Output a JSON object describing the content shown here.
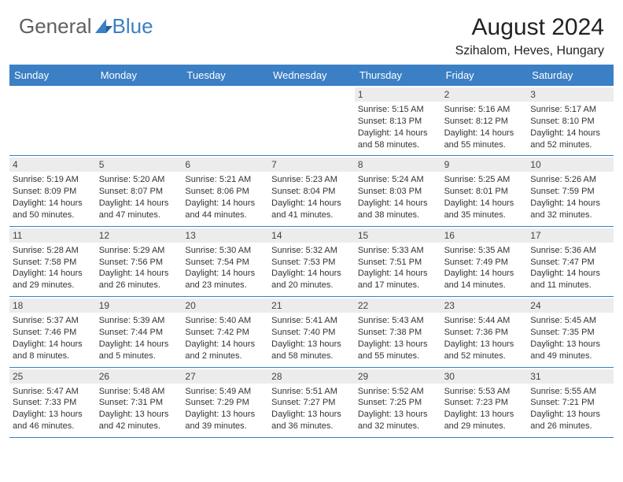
{
  "logo": {
    "text1": "General",
    "text2": "Blue"
  },
  "title": "August 2024",
  "location": "Szihalom, Heves, Hungary",
  "colors": {
    "header_bg": "#3b7fc4",
    "header_fg": "#ffffff",
    "daynum_bg": "#ececec",
    "border": "#3b7fc4",
    "logo_gray": "#606060",
    "logo_blue": "#3b7fc4"
  },
  "day_names": [
    "Sunday",
    "Monday",
    "Tuesday",
    "Wednesday",
    "Thursday",
    "Friday",
    "Saturday"
  ],
  "weeks": [
    [
      null,
      null,
      null,
      null,
      {
        "n": "1",
        "sr": "5:15 AM",
        "ss": "8:13 PM",
        "dl": "14 hours and 58 minutes."
      },
      {
        "n": "2",
        "sr": "5:16 AM",
        "ss": "8:12 PM",
        "dl": "14 hours and 55 minutes."
      },
      {
        "n": "3",
        "sr": "5:17 AM",
        "ss": "8:10 PM",
        "dl": "14 hours and 52 minutes."
      }
    ],
    [
      {
        "n": "4",
        "sr": "5:19 AM",
        "ss": "8:09 PM",
        "dl": "14 hours and 50 minutes."
      },
      {
        "n": "5",
        "sr": "5:20 AM",
        "ss": "8:07 PM",
        "dl": "14 hours and 47 minutes."
      },
      {
        "n": "6",
        "sr": "5:21 AM",
        "ss": "8:06 PM",
        "dl": "14 hours and 44 minutes."
      },
      {
        "n": "7",
        "sr": "5:23 AM",
        "ss": "8:04 PM",
        "dl": "14 hours and 41 minutes."
      },
      {
        "n": "8",
        "sr": "5:24 AM",
        "ss": "8:03 PM",
        "dl": "14 hours and 38 minutes."
      },
      {
        "n": "9",
        "sr": "5:25 AM",
        "ss": "8:01 PM",
        "dl": "14 hours and 35 minutes."
      },
      {
        "n": "10",
        "sr": "5:26 AM",
        "ss": "7:59 PM",
        "dl": "14 hours and 32 minutes."
      }
    ],
    [
      {
        "n": "11",
        "sr": "5:28 AM",
        "ss": "7:58 PM",
        "dl": "14 hours and 29 minutes."
      },
      {
        "n": "12",
        "sr": "5:29 AM",
        "ss": "7:56 PM",
        "dl": "14 hours and 26 minutes."
      },
      {
        "n": "13",
        "sr": "5:30 AM",
        "ss": "7:54 PM",
        "dl": "14 hours and 23 minutes."
      },
      {
        "n": "14",
        "sr": "5:32 AM",
        "ss": "7:53 PM",
        "dl": "14 hours and 20 minutes."
      },
      {
        "n": "15",
        "sr": "5:33 AM",
        "ss": "7:51 PM",
        "dl": "14 hours and 17 minutes."
      },
      {
        "n": "16",
        "sr": "5:35 AM",
        "ss": "7:49 PM",
        "dl": "14 hours and 14 minutes."
      },
      {
        "n": "17",
        "sr": "5:36 AM",
        "ss": "7:47 PM",
        "dl": "14 hours and 11 minutes."
      }
    ],
    [
      {
        "n": "18",
        "sr": "5:37 AM",
        "ss": "7:46 PM",
        "dl": "14 hours and 8 minutes."
      },
      {
        "n": "19",
        "sr": "5:39 AM",
        "ss": "7:44 PM",
        "dl": "14 hours and 5 minutes."
      },
      {
        "n": "20",
        "sr": "5:40 AM",
        "ss": "7:42 PM",
        "dl": "14 hours and 2 minutes."
      },
      {
        "n": "21",
        "sr": "5:41 AM",
        "ss": "7:40 PM",
        "dl": "13 hours and 58 minutes."
      },
      {
        "n": "22",
        "sr": "5:43 AM",
        "ss": "7:38 PM",
        "dl": "13 hours and 55 minutes."
      },
      {
        "n": "23",
        "sr": "5:44 AM",
        "ss": "7:36 PM",
        "dl": "13 hours and 52 minutes."
      },
      {
        "n": "24",
        "sr": "5:45 AM",
        "ss": "7:35 PM",
        "dl": "13 hours and 49 minutes."
      }
    ],
    [
      {
        "n": "25",
        "sr": "5:47 AM",
        "ss": "7:33 PM",
        "dl": "13 hours and 46 minutes."
      },
      {
        "n": "26",
        "sr": "5:48 AM",
        "ss": "7:31 PM",
        "dl": "13 hours and 42 minutes."
      },
      {
        "n": "27",
        "sr": "5:49 AM",
        "ss": "7:29 PM",
        "dl": "13 hours and 39 minutes."
      },
      {
        "n": "28",
        "sr": "5:51 AM",
        "ss": "7:27 PM",
        "dl": "13 hours and 36 minutes."
      },
      {
        "n": "29",
        "sr": "5:52 AM",
        "ss": "7:25 PM",
        "dl": "13 hours and 32 minutes."
      },
      {
        "n": "30",
        "sr": "5:53 AM",
        "ss": "7:23 PM",
        "dl": "13 hours and 29 minutes."
      },
      {
        "n": "31",
        "sr": "5:55 AM",
        "ss": "7:21 PM",
        "dl": "13 hours and 26 minutes."
      }
    ]
  ],
  "labels": {
    "sunrise": "Sunrise: ",
    "sunset": "Sunset: ",
    "daylight": "Daylight: "
  }
}
